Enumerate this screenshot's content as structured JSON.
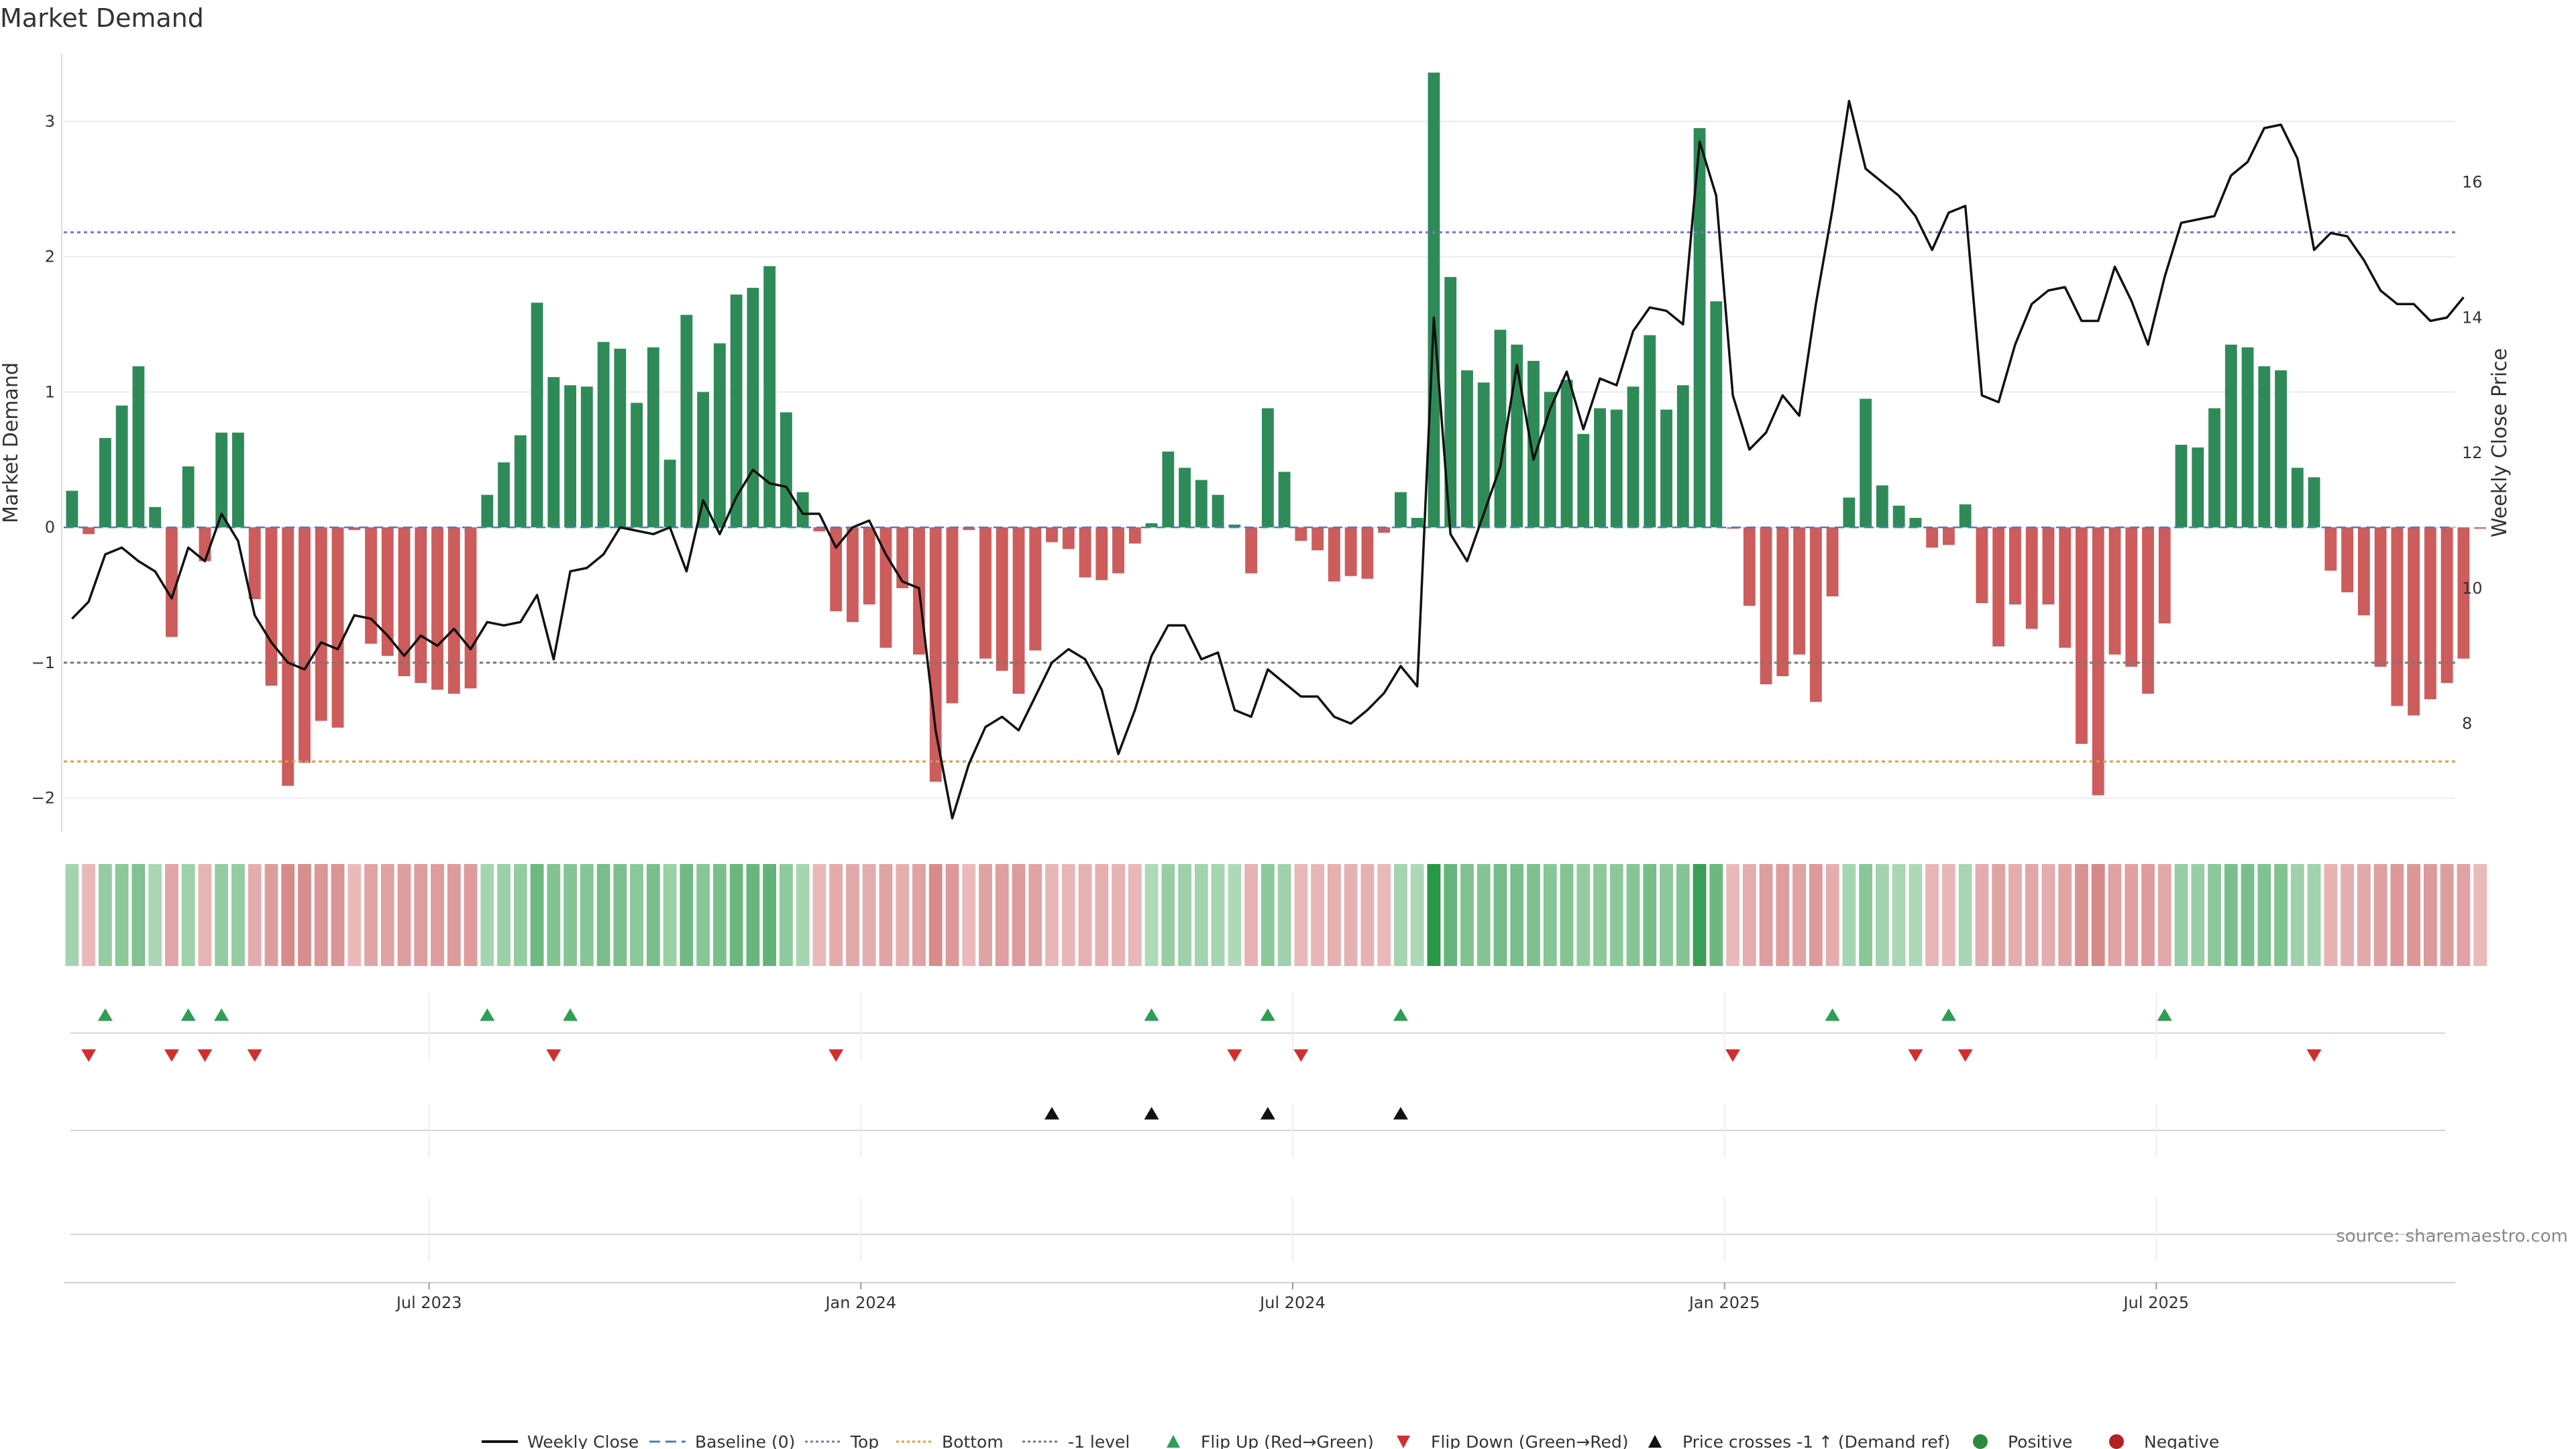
{
  "chart_data": {
    "type": "bar",
    "title": "Market Demand",
    "ylabel": "Market Demand",
    "y2label": "Weekly Close Price",
    "ylim": [
      -2.25,
      3.5
    ],
    "y2lim": [
      6.4,
      17.9
    ],
    "yticks": [
      -2,
      -1,
      0,
      1,
      2,
      3
    ],
    "y2ticks": [
      8,
      10,
      12,
      14,
      16
    ],
    "xtick_labels": [
      {
        "label": "Jul 2023",
        "week": 22
      },
      {
        "label": "Jan 2024",
        "week": 48
      },
      {
        "label": "Jul 2024",
        "week": 74
      },
      {
        "label": "Jan 2025",
        "week": 100
      },
      {
        "label": "Jul 2025",
        "week": 126
      }
    ],
    "reference_lines": {
      "top": 2.18,
      "bottom": -1.73,
      "minus_one": -1.0,
      "baseline": 0
    },
    "weeks": 144,
    "values": [
      0.27,
      -0.05,
      0.66,
      0.9,
      1.19,
      0.15,
      -0.81,
      0.45,
      -0.25,
      0.7,
      0.7,
      -0.53,
      -1.17,
      -1.91,
      -1.74,
      -1.43,
      -1.48,
      -0.02,
      -0.86,
      -0.95,
      -1.1,
      -1.15,
      -1.2,
      -1.23,
      -1.19,
      0.24,
      0.48,
      0.68,
      1.66,
      1.11,
      1.05,
      1.04,
      1.37,
      1.32,
      0.92,
      1.33,
      0.5,
      1.57,
      1.0,
      1.36,
      1.72,
      1.77,
      1.93,
      0.85,
      0.26,
      -0.03,
      -0.62,
      -0.7,
      -0.57,
      -0.89,
      -0.45,
      -0.94,
      -1.88,
      -1.3,
      -0.02,
      -0.97,
      -1.06,
      -1.23,
      -0.91,
      -0.11,
      -0.16,
      -0.37,
      -0.39,
      -0.34,
      -0.12,
      0.03,
      0.56,
      0.44,
      0.35,
      0.24,
      0.02,
      -0.34,
      0.88,
      0.41,
      -0.1,
      -0.17,
      -0.4,
      -0.36,
      -0.38,
      -0.04,
      0.26,
      0.07,
      3.36,
      1.85,
      1.16,
      1.07,
      1.46,
      1.35,
      1.23,
      1.0,
      1.09,
      0.69,
      0.88,
      0.87,
      1.04,
      1.42,
      0.87,
      1.05,
      2.95,
      1.67,
      -0.01,
      -0.58,
      -1.16,
      -1.1,
      -0.94,
      -1.29,
      -0.51,
      0.22,
      0.95,
      0.31,
      0.16,
      0.07,
      -0.15,
      -0.13,
      0.17,
      -0.56,
      -0.88,
      -0.57,
      -0.75,
      -0.57,
      -0.89,
      -1.6,
      -1.98,
      -0.94,
      -1.03,
      -1.23,
      -0.71,
      0.61,
      0.59,
      0.88,
      1.35,
      1.33,
      1.19,
      1.16,
      0.44,
      0.37,
      -0.32,
      -0.48,
      -0.65,
      -1.03,
      -1.32,
      -1.39,
      -1.27,
      -1.15,
      -0.97,
      -0.01
    ],
    "series": [
      {
        "name": "Weekly Close",
        "values": [
          9.55,
          9.8,
          10.5,
          10.6,
          10.4,
          10.25,
          9.85,
          10.6,
          10.4,
          11.1,
          10.7,
          9.6,
          9.2,
          8.9,
          8.8,
          9.2,
          9.1,
          9.6,
          9.55,
          9.3,
          9.0,
          9.3,
          9.15,
          9.4,
          9.1,
          9.5,
          9.45,
          9.5,
          9.9,
          8.95,
          10.25,
          10.3,
          10.5,
          10.9,
          10.85,
          10.8,
          10.9,
          10.25,
          11.3,
          10.8,
          11.35,
          11.75,
          11.55,
          11.5,
          11.1,
          11.1,
          10.6,
          10.9,
          11.0,
          10.5,
          10.1,
          10.0,
          7.9,
          6.6,
          7.4,
          7.95,
          8.1,
          7.9,
          8.4,
          8.9,
          9.1,
          8.95,
          8.5,
          7.55,
          8.2,
          9.0,
          9.45,
          9.45,
          8.95,
          9.05,
          8.2,
          8.1,
          8.8,
          8.6,
          8.4,
          8.4,
          8.1,
          8.0,
          8.2,
          8.45,
          8.85,
          8.55,
          14.0,
          10.8,
          10.4,
          11.1,
          11.8,
          13.3,
          11.9,
          12.65,
          13.2,
          12.35,
          13.1,
          13.0,
          13.8,
          14.15,
          14.1,
          13.9,
          16.6,
          15.8,
          12.85,
          12.05,
          12.3,
          12.85,
          12.55,
          14.2,
          15.6,
          17.2,
          16.2,
          16.0,
          15.8,
          15.5,
          15.0,
          15.55,
          15.65,
          12.85,
          12.75,
          13.6,
          14.2,
          14.4,
          14.45,
          13.95,
          13.95,
          14.75,
          14.25,
          13.6,
          14.6,
          15.4,
          15.45,
          15.5,
          16.1,
          16.3,
          16.8,
          16.85,
          16.35,
          15.0,
          15.25,
          15.2,
          14.85,
          14.4,
          14.2,
          14.2,
          13.95,
          14.0,
          14.3
        ]
      }
    ],
    "flip_up_weeks": [
      2,
      7,
      9,
      25,
      30,
      65,
      72,
      80,
      106,
      113,
      126
    ],
    "flip_down_weeks": [
      1,
      6,
      8,
      11,
      29,
      46,
      70,
      74,
      100,
      111,
      114,
      135
    ],
    "price_cross_weeks": [
      59,
      65,
      72,
      80
    ],
    "legend": [
      {
        "label": "Weekly Close",
        "kind": "line",
        "color": "#111111"
      },
      {
        "label": "Baseline (0)",
        "kind": "dash",
        "color": "#4a7fc1"
      },
      {
        "label": "Top",
        "kind": "dot",
        "color": "#7b72c9"
      },
      {
        "label": "Bottom",
        "kind": "dot",
        "color": "#e29a3c"
      },
      {
        "label": "-1 level",
        "kind": "dot",
        "color": "#777777"
      },
      {
        "label": "Flip Up (Red→Green)",
        "kind": "tri-up",
        "color": "#2e9e56"
      },
      {
        "label": "Flip Down (Green→Red)",
        "kind": "tri-down",
        "color": "#d12f2f"
      },
      {
        "label": "Price crosses -1 ↑ (Demand ref)",
        "kind": "tri-up",
        "color": "#111111"
      },
      {
        "label": "Positive",
        "kind": "circle",
        "color": "#2a8c3a"
      },
      {
        "label": "Negative",
        "kind": "circle",
        "color": "#b22222"
      }
    ],
    "source": "source: sharemaestro.com",
    "colors": {
      "positive": "#2e8b57",
      "negative": "#cd5c5c",
      "line": "#111111"
    }
  }
}
